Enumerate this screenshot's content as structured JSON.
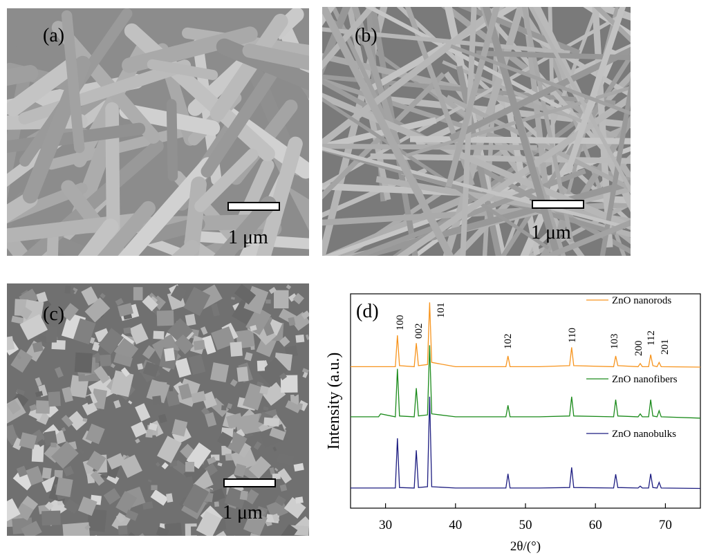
{
  "panels": [
    {
      "label": "(a)",
      "scale_bar": "1 μm"
    },
    {
      "label": "(b)",
      "scale_bar": "1 μm"
    },
    {
      "label": "(c)",
      "scale_bar": "1 μm"
    }
  ],
  "chart_data": {
    "type": "line",
    "panel_label": "(d)",
    "x_label": "2θ/(°)",
    "y_label": "Intensity (a.u.)",
    "xlim": [
      25,
      75
    ],
    "xticks": [
      30,
      40,
      50,
      60,
      70
    ],
    "ylim": [
      0,
      100
    ],
    "annotations": [
      "100",
      "002",
      "101",
      "102",
      "110",
      "103",
      "200",
      "112",
      "201"
    ],
    "x": [
      25,
      29,
      29.3,
      31.4,
      31.7,
      32.0,
      34.1,
      34.4,
      34.7,
      36.0,
      36.3,
      36.6,
      40,
      47.2,
      47.5,
      47.8,
      52,
      56.3,
      56.6,
      56.9,
      62.6,
      62.9,
      63.2,
      66.1,
      66.4,
      66.7,
      67.6,
      67.9,
      68.2,
      68.8,
      69.1,
      69.4,
      75
    ],
    "series": [
      {
        "name": "ZnO nanorods",
        "color": "#f7941d",
        "values": [
          66,
          66,
          66,
          66,
          80.6,
          66.5,
          66,
          77,
          66.5,
          67,
          96,
          68,
          66,
          66,
          71,
          66,
          66,
          66.5,
          75,
          66.5,
          66,
          71,
          66.5,
          66,
          67.5,
          66,
          66,
          71.6,
          66.5,
          66,
          68,
          66,
          65.8
        ]
      },
      {
        "name": "ZnO nanofibers",
        "color": "#1a8a1a",
        "values": [
          42.6,
          42.6,
          44,
          42.6,
          65,
          43,
          42.6,
          56,
          43,
          43.5,
          76,
          44,
          42.6,
          42.6,
          48,
          42.6,
          42.6,
          43,
          52,
          43,
          42.6,
          50.6,
          43,
          42.6,
          44,
          42.6,
          42.6,
          50.6,
          43,
          42.6,
          45.5,
          42.6,
          42
        ]
      },
      {
        "name": "ZnO nanobulks",
        "color": "#1c1c80",
        "values": [
          9.4,
          9.4,
          9.4,
          9.4,
          32.6,
          9.6,
          9.4,
          27,
          9.6,
          10,
          52,
          10,
          9.4,
          9.4,
          16,
          9.4,
          9.4,
          9.6,
          19,
          9.6,
          9.4,
          15.8,
          9.6,
          9.4,
          10.3,
          9.4,
          9.4,
          16,
          9.6,
          9.4,
          12,
          9.4,
          9.2
        ]
      }
    ]
  }
}
